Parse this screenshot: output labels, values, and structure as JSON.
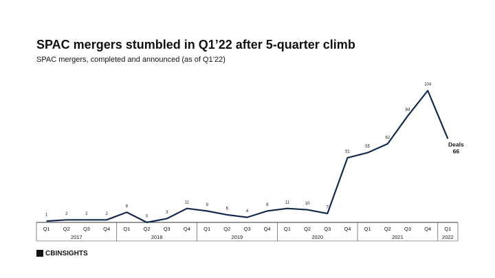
{
  "chart_data": {
    "type": "line",
    "title": "SPAC mergers stumbled in Q1’22 after 5-quarter climb",
    "subtitle": "SPAC mergers, completed and announced (as of Q1’22)",
    "categories": [
      "Q1",
      "Q2",
      "Q3",
      "Q4",
      "Q1",
      "Q2",
      "Q3",
      "Q4",
      "Q1",
      "Q2",
      "Q3",
      "Q4",
      "Q1",
      "Q2",
      "Q3",
      "Q4",
      "Q1",
      "Q2",
      "Q3",
      "Q4",
      "Q1"
    ],
    "x_groups": [
      "2017",
      "2018",
      "2019",
      "2020",
      "2021",
      "2022"
    ],
    "series": [
      {
        "name": "Deals",
        "color": "#14284b",
        "values": [
          1,
          2,
          2,
          2,
          8,
          0,
          3,
          11,
          9,
          6,
          4,
          9,
          11,
          10,
          7,
          51,
          55,
          62,
          84,
          104,
          66
        ]
      }
    ],
    "source_logo": "CBINSIGHTS"
  }
}
